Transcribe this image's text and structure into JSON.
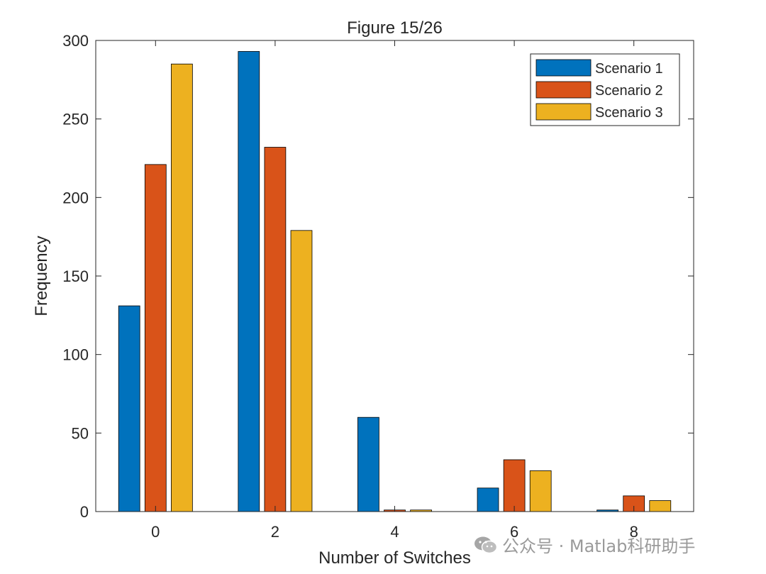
{
  "chart_data": {
    "type": "bar",
    "title": "Figure 15/26",
    "xlabel": "Number of Switches",
    "ylabel": "Frequency",
    "categories": [
      0,
      2,
      4,
      6,
      8
    ],
    "xlim": [
      -1,
      9
    ],
    "ylim": [
      0,
      300
    ],
    "xticks": [
      "0",
      "2",
      "4",
      "6",
      "8"
    ],
    "yticks": [
      "0",
      "50",
      "100",
      "150",
      "200",
      "250",
      "300"
    ],
    "yticks_values": [
      0,
      50,
      100,
      150,
      200,
      250,
      300
    ],
    "legend_position": "top-right",
    "series": [
      {
        "name": "Scenario 1",
        "color": "#0072BD",
        "values": [
          131,
          293,
          60,
          15,
          1
        ]
      },
      {
        "name": "Scenario 2",
        "color": "#D95319",
        "values": [
          221,
          232,
          1,
          33,
          10
        ]
      },
      {
        "name": "Scenario 3",
        "color": "#EDB120",
        "values": [
          285,
          179,
          1,
          26,
          7
        ]
      }
    ]
  },
  "watermark": {
    "text": "公众号 · Matlab科研助手",
    "icon": "wechat-icon"
  }
}
